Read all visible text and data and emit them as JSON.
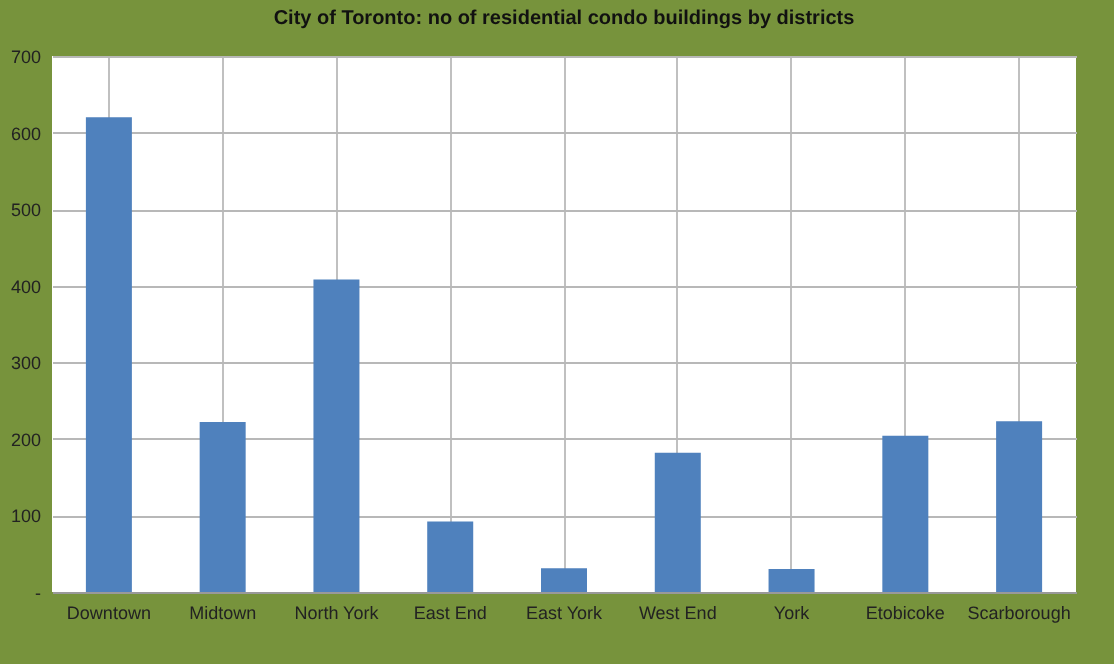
{
  "chart_data": {
    "type": "bar",
    "title": "City of Toronto: no of residential condo buildings by districts",
    "categories": [
      "Downtown",
      "Midtown",
      "North York",
      "East End",
      "East York",
      "West End",
      "York",
      "Etobicoke",
      "Scarborough"
    ],
    "values": [
      620,
      222,
      408,
      92,
      31,
      182,
      30,
      204,
      223
    ],
    "color": "#4f81bd",
    "ylim": [
      0,
      700
    ],
    "yticks": [
      {
        "value": 0,
        "label": "-"
      },
      100,
      200,
      300,
      400,
      500,
      600,
      700
    ],
    "grid": true
  }
}
